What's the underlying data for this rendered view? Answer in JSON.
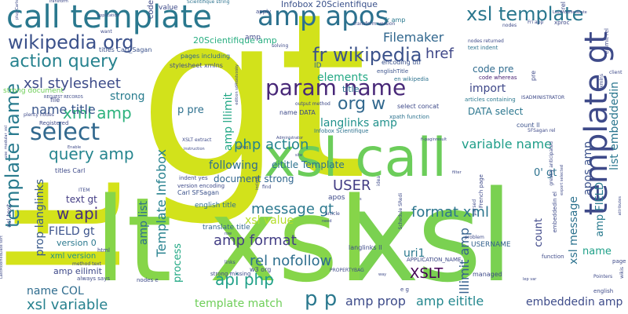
{
  "words": [
    {
      "text": "gt",
      "color": "#d2e21b"
    },
    {
      "text": "lt",
      "color": "#d4e21a"
    },
    {
      "text": "xsl",
      "color": "#7ad151"
    },
    {
      "text": "xsl call",
      "color": "#6ccd5a"
    },
    {
      "text": "lt xsl",
      "color": "#86d549"
    },
    {
      "text": "call template",
      "color": "#2a788e"
    },
    {
      "text": "amp apos",
      "color": "#2c718e"
    },
    {
      "text": "xsl template",
      "color": "#2a778e"
    },
    {
      "text": "template gt",
      "color": "#3e4a89"
    },
    {
      "text": "wikipedia org",
      "color": "#3b518b"
    },
    {
      "text": "action query",
      "color": "#26828e"
    },
    {
      "text": "fr wikipedia",
      "color": "#3b528b"
    },
    {
      "text": "param name",
      "color": "#482878"
    },
    {
      "text": "select",
      "color": "#31688e"
    },
    {
      "text": "template name",
      "color": "#297b8e"
    },
    {
      "text": "xsl stylesheet",
      "color": "#3e4c8a"
    },
    {
      "text": "xml amp",
      "color": "#2db27d"
    },
    {
      "text": "org w",
      "color": "#31688e"
    },
    {
      "text": "href",
      "color": "#3f4788"
    },
    {
      "text": "Filemaker",
      "color": "#31678e"
    },
    {
      "text": "elements",
      "color": "#22a884"
    },
    {
      "text": "name title",
      "color": "#39568c"
    },
    {
      "text": "strong",
      "color": "#287c8e"
    },
    {
      "text": "p pre",
      "color": "#2d708e"
    },
    {
      "text": "langlinks amp",
      "color": "#21918c"
    },
    {
      "text": "php action",
      "color": "#25848e"
    },
    {
      "text": "query amp",
      "color": "#25858e"
    },
    {
      "text": "w api",
      "color": "#462f7c"
    },
    {
      "text": "variable name",
      "color": "#1f9e89"
    },
    {
      "text": "USER",
      "color": "#433d84"
    },
    {
      "text": "message gt",
      "color": "#2a788e"
    },
    {
      "text": "format xml",
      "color": "#2b758e"
    },
    {
      "text": "amp format",
      "color": "#433e85"
    },
    {
      "text": "api php",
      "color": "#1fa088"
    },
    {
      "text": "rel nofollow",
      "color": "#2e6f8e"
    },
    {
      "text": "XSLT",
      "color": "#440154"
    },
    {
      "text": "uri1",
      "color": "#2a788e"
    },
    {
      "text": "p p",
      "color": "#2a788e"
    },
    {
      "text": "amp prop",
      "color": "#3e4c8a"
    },
    {
      "text": "amp eititle",
      "color": "#24878e"
    },
    {
      "text": "embeddedin amp",
      "color": "#3e4c8a"
    },
    {
      "text": "template match",
      "color": "#6ece58"
    },
    {
      "text": "xsl variable",
      "color": "#26818e"
    },
    {
      "text": "name COL",
      "color": "#2f6c8e"
    },
    {
      "text": "FIELD gt",
      "color": "#3b528b"
    },
    {
      "text": "text gt",
      "color": "#433d84"
    },
    {
      "text": "xsl value",
      "color": "#b5de2b"
    },
    {
      "text": "following",
      "color": "#2e6e8e"
    },
    {
      "text": "document strong",
      "color": "#31668e"
    },
    {
      "text": "eititle Template",
      "color": "#2c728e"
    },
    {
      "text": "Template Infobox",
      "color": "#26818e"
    },
    {
      "text": "amp list",
      "color": "#2e6f8e"
    },
    {
      "text": "Infobox 20Scientifique",
      "color": "#3b528b"
    },
    {
      "text": "20Scientifique amp",
      "color": "#28ae80"
    },
    {
      "text": "amp lllimit",
      "color": "#22a785"
    },
    {
      "text": "code pre",
      "color": "#2f6b8e"
    },
    {
      "text": "import",
      "color": "#3f4889"
    },
    {
      "text": "DATA select",
      "color": "#2a778e"
    },
    {
      "text": "list embeddedin",
      "color": "#2a768e"
    },
    {
      "text": "apos amp",
      "color": "#3b518b"
    },
    {
      "text": "amp FIELD",
      "color": "#297a8e"
    },
    {
      "text": "xsl message",
      "color": "#2c728e"
    },
    {
      "text": "lllimit amp",
      "color": "#34608d"
    },
    {
      "text": "count",
      "color": "#3f4889"
    },
    {
      "text": "name",
      "color": "#1fa088"
    },
    {
      "text": "prop langlinks",
      "color": "#38598c"
    },
    {
      "text": "version 0",
      "color": "#2a788e"
    },
    {
      "text": "xml version",
      "color": "#21918c"
    },
    {
      "text": "amp eilimit",
      "color": "#3e4989"
    },
    {
      "text": "process",
      "color": "#22a884"
    },
    {
      "text": "strong document",
      "color": "#6ece58"
    },
    {
      "text": "title",
      "color": "#2c728e"
    },
    {
      "text": "Carl SFSagan",
      "color": "#3b528b"
    },
    {
      "text": "english title",
      "color": "#2e6e8e"
    },
    {
      "text": "translate title",
      "color": "#31688e"
    },
    {
      "text": "USERNAME",
      "color": "#34618d"
    },
    {
      "text": "APPLICATION_NAME",
      "color": "#3e4a89"
    },
    {
      "text": "select concat",
      "color": "#3e4a89"
    },
    {
      "text": "encoding utf",
      "color": "#3b528b"
    },
    {
      "text": "stylesheet xmlns",
      "color": "#3e4c8a"
    },
    {
      "text": "pages including",
      "color": "#31688e"
    },
    {
      "text": "titles Carl_Sagan",
      "color": "#3b528b"
    },
    {
      "text": "code whereas",
      "color": "#482173"
    },
    {
      "text": "articles containing",
      "color": "#2a788e"
    },
    {
      "text": "fr amp",
      "color": "#2a788e"
    },
    {
      "text": "ID",
      "color": "#31688e"
    },
    {
      "text": "en wikipedia",
      "color": "#2c728e"
    },
    {
      "text": "englishTitle",
      "color": "#3b528b"
    },
    {
      "text": "count ll",
      "color": "#3b528b"
    },
    {
      "text": "0' gt",
      "color": "#2c728e"
    },
    {
      "text": "langlinks ll",
      "color": "#3e4a89"
    },
    {
      "text": "output method",
      "color": "#3e4a89"
    },
    {
      "text": "XSLT extract",
      "color": "#3e4a89"
    },
    {
      "text": "w3 org",
      "color": "#3e4a89"
    },
    {
      "text": "strong missing",
      "color": "#3e4a89"
    },
    {
      "text": "PROPERTYBAG",
      "color": "#3e4a89"
    },
    {
      "text": "xpath function",
      "color": "#2c728e"
    },
    {
      "text": "name DATA",
      "color": "#3e4a89"
    },
    {
      "text": "Infobox Scientifique",
      "color": "#2c728e"
    },
    {
      "text": "indent yes",
      "color": "#3e4a89"
    },
    {
      "text": "version encoding",
      "color": "#3e4a89"
    },
    {
      "text": "text indent",
      "color": "#2c728e"
    },
    {
      "text": "nodes returned",
      "color": "#3e4a89"
    },
    {
      "text": "value",
      "color": "#3e4a89"
    },
    {
      "text": "code",
      "color": "#3e4a89"
    },
    {
      "text": "apply",
      "color": "#3e4a89"
    },
    {
      "text": "Scientifique string",
      "color": "#2c728e"
    },
    {
      "text": "solving",
      "color": "#3e4a89"
    },
    {
      "text": "managed",
      "color": "#3e4a89"
    },
    {
      "text": "function",
      "color": "#3e4a89"
    },
    {
      "text": "always says",
      "color": "#3e4a89"
    },
    {
      "text": "html",
      "color": "#3e4a89"
    },
    {
      "text": "method text",
      "color": "#3e4a89"
    },
    {
      "text": "nodes e",
      "color": "#3e4a89"
    },
    {
      "text": "Registered",
      "color": "#3e4a89"
    },
    {
      "text": "file",
      "color": "#3e4a89"
    },
    {
      "text": "plenty nodes",
      "color": "#3e4a89"
    },
    {
      "text": "article",
      "color": "#3e4a89"
    },
    {
      "text": "find",
      "color": "#3e4a89"
    },
    {
      "text": "apos",
      "color": "#3e4a89"
    },
    {
      "text": "links",
      "color": "#3e4a89"
    },
    {
      "text": "ITEM",
      "color": "#3e4a89"
    },
    {
      "text": "Administrator",
      "color": "#3e4a89"
    },
    {
      "text": "filter",
      "color": "#3e4a89"
    },
    {
      "text": "fi-paginresult",
      "color": "#3e4a89"
    },
    {
      "text": "page",
      "color": "#3e4a89"
    },
    {
      "text": "english",
      "color": "#3e4a89"
    },
    {
      "text": "problem",
      "color": "#3e4a89"
    },
    {
      "text": "Pointers",
      "color": "#3e4a89"
    },
    {
      "text": "lep var",
      "color": "#3e4a89"
    },
    {
      "text": "xproc",
      "color": "#3e4a89"
    },
    {
      "text": "LastModifiedDate",
      "color": "#3e4a89"
    },
    {
      "text": "Transform",
      "color": "#3e4a89"
    },
    {
      "text": "application",
      "color": "#3e4a89"
    },
    {
      "text": "want",
      "color": "#3e4a89"
    },
    {
      "text": "nodes",
      "color": "#3e4a89"
    },
    {
      "text": "Fri app",
      "color": "#3e4a89"
    },
    {
      "text": "instruction",
      "color": "#3e4a89"
    },
    {
      "text": "site",
      "color": "#3e4a89"
    },
    {
      "text": "s",
      "color": "#3e4a89"
    },
    {
      "text": "way",
      "color": "#3e4a89"
    },
    {
      "text": "need",
      "color": "#3e4a89"
    },
    {
      "text": "row",
      "color": "#3e4a89"
    },
    {
      "text": "idea",
      "color": "#3e4a89"
    },
    {
      "text": "include",
      "color": "#3e4a89"
    },
    {
      "text": "e g",
      "color": "#3e4a89"
    },
    {
      "text": "French page",
      "color": "#3e4a89"
    },
    {
      "text": "parsed",
      "color": "#3e4a89"
    },
    {
      "text": "Enable",
      "color": "#3e4a89"
    },
    {
      "text": "xsl text",
      "color": "#3e4a89"
    },
    {
      "text": "use_modular_xsl",
      "color": "#3e4a89"
    },
    {
      "text": "titles Carl",
      "color": "#3e4a89"
    },
    {
      "text": "5FSagan rel",
      "color": "#3e4a89"
    },
    {
      "text": "ISADMINISTRATOR",
      "color": "#3e4a89"
    },
    {
      "text": "eilimit rel",
      "color": "#3e4a89"
    },
    {
      "text": "xmlns",
      "color": "#3e4a89"
    },
    {
      "text": "greatly anticipated",
      "color": "#3e4a89"
    },
    {
      "text": "export selected",
      "color": "#3e4a89"
    },
    {
      "text": "attributes",
      "color": "#3e4a89"
    },
    {
      "text": "wikis",
      "color": "#3e4a89"
    },
    {
      "text": "Schedule SRedi",
      "color": "#3e4a89"
    },
    {
      "text": "REQUEST RECORDS",
      "color": "#3e4a89"
    },
    {
      "text": "edition sd4tostvxsky",
      "color": "#3e4a89"
    },
    {
      "text": "LastModifiedDate sort",
      "color": "#3e4a89"
    },
    {
      "text": "plug Carls",
      "color": "#3e4a89"
    },
    {
      "text": "client",
      "color": "#3e4a89"
    },
    {
      "text": "rel",
      "color": "#3e4a89"
    },
    {
      "text": "amp",
      "color": "#3e4a89"
    },
    {
      "text": "pre",
      "color": "#3e4a89"
    },
    {
      "text": "transform version",
      "color": "#3e4a89"
    },
    {
      "text": "embeddedin el",
      "color": "#3e4a89"
    },
    {
      "text": "string",
      "color": "#3e4a89"
    }
  ]
}
